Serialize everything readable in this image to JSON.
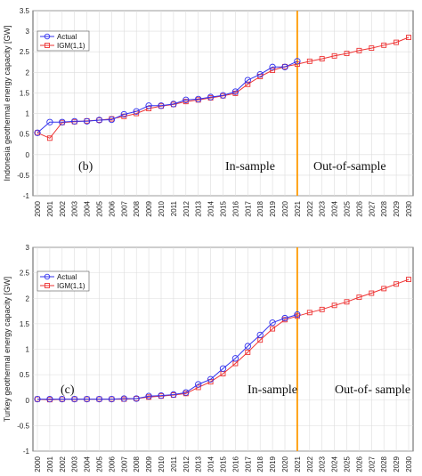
{
  "chart_data": [
    {
      "type": "line",
      "ylabel": "Indonesia geothermal energy capacity [GW]",
      "ylim": [
        -1,
        3.5
      ],
      "yticks": [
        -1,
        -0.5,
        0,
        0.5,
        1,
        1.5,
        2,
        2.5,
        3,
        3.5
      ],
      "x": [
        "2000",
        "2001",
        "2002",
        "2003",
        "2004",
        "2005",
        "2006",
        "2007",
        "2008",
        "2009",
        "2010",
        "2011",
        "2012",
        "2013",
        "2014",
        "2015",
        "2016",
        "2017",
        "2018",
        "2019",
        "2020",
        "2021",
        "2022",
        "2023",
        "2024",
        "2025",
        "2026",
        "2027",
        "2028",
        "2029",
        "2030"
      ],
      "grid": true,
      "legend_position": "top-left",
      "divider_year": "2021",
      "divider_color": "#ff9900",
      "series": [
        {
          "name": "Actual",
          "color": "#3333ee",
          "marker": "circle",
          "values": [
            0.53,
            0.79,
            0.79,
            0.81,
            0.81,
            0.84,
            0.85,
            0.98,
            1.05,
            1.19,
            1.19,
            1.23,
            1.33,
            1.35,
            1.4,
            1.44,
            1.53,
            1.81,
            1.95,
            2.13,
            2.13,
            2.27,
            null,
            null,
            null,
            null,
            null,
            null,
            null,
            null,
            null
          ]
        },
        {
          "name": "IGM(1,1)",
          "color": "#ee3333",
          "marker": "square",
          "values": [
            0.53,
            0.4,
            0.78,
            0.8,
            0.82,
            0.84,
            0.87,
            0.93,
            1.0,
            1.12,
            1.18,
            1.22,
            1.29,
            1.33,
            1.38,
            1.43,
            1.49,
            1.71,
            1.9,
            2.05,
            2.14,
            2.2,
            2.27,
            2.33,
            2.4,
            2.46,
            2.53,
            2.59,
            2.66,
            2.73,
            2.85
          ]
        }
      ],
      "annotations": {
        "panel": "(b)",
        "in_sample": "In-sample",
        "out_of_sample": "Out-of-sample"
      }
    },
    {
      "type": "line",
      "ylabel": "Turkey geothermal energy capacity [GW]",
      "ylim": [
        -1,
        3
      ],
      "yticks": [
        -1,
        -0.5,
        0,
        0.5,
        1,
        1.5,
        2,
        2.5,
        3
      ],
      "x": [
        "2000",
        "2001",
        "2002",
        "2003",
        "2004",
        "2005",
        "2006",
        "2007",
        "2008",
        "2009",
        "2010",
        "2011",
        "2012",
        "2013",
        "2014",
        "2015",
        "2016",
        "2017",
        "2018",
        "2019",
        "2020",
        "2021",
        "2022",
        "2023",
        "2024",
        "2025",
        "2026",
        "2027",
        "2028",
        "2029",
        "2030"
      ],
      "grid": true,
      "legend_position": "top-left",
      "divider_year": "2021",
      "divider_color": "#ff9900",
      "series": [
        {
          "name": "Actual",
          "color": "#3333ee",
          "marker": "circle",
          "values": [
            0.02,
            0.02,
            0.02,
            0.02,
            0.02,
            0.02,
            0.02,
            0.03,
            0.03,
            0.08,
            0.09,
            0.11,
            0.15,
            0.31,
            0.41,
            0.62,
            0.82,
            1.06,
            1.28,
            1.52,
            1.61,
            1.68,
            null,
            null,
            null,
            null,
            null,
            null,
            null,
            null,
            null
          ]
        },
        {
          "name": "IGM(1,1)",
          "color": "#ee3333",
          "marker": "square",
          "values": [
            0.02,
            0.01,
            0.02,
            0.02,
            0.02,
            0.02,
            0.02,
            0.02,
            0.03,
            0.06,
            0.08,
            0.1,
            0.13,
            0.25,
            0.36,
            0.52,
            0.72,
            0.94,
            1.18,
            1.4,
            1.58,
            1.65,
            1.72,
            1.78,
            1.86,
            1.93,
            2.02,
            2.1,
            2.19,
            2.28,
            2.37
          ]
        }
      ],
      "annotations": {
        "panel": "(c)",
        "in_sample": "In-sample",
        "out_of_sample": "Out-of- sample"
      }
    }
  ]
}
